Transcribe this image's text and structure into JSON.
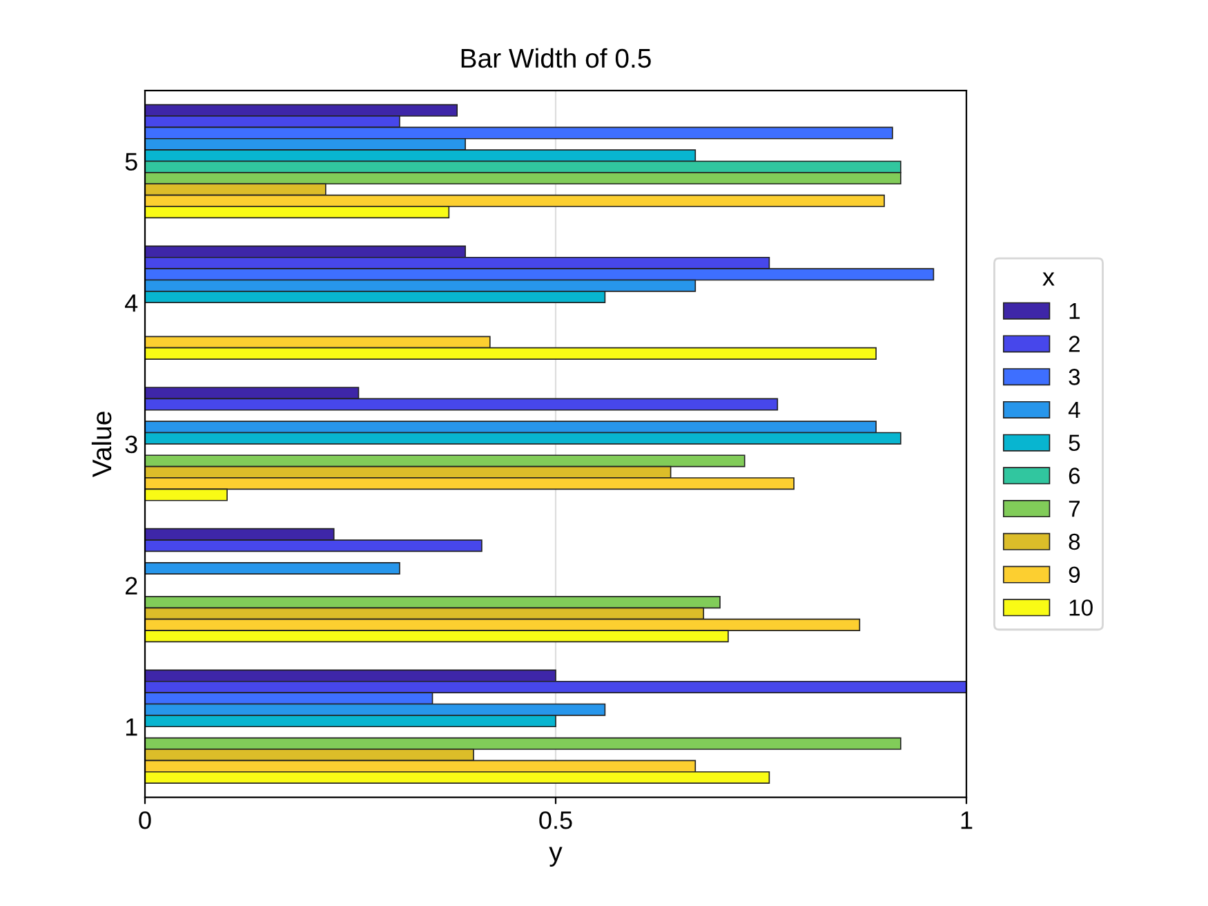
{
  "chart_data": {
    "type": "bar",
    "orientation": "horizontal",
    "title": "Bar Width of 0.5",
    "xlabel": "y",
    "ylabel": "Value",
    "legend_title": "x",
    "legend": "right",
    "grid": "x",
    "categories": [
      "5",
      "4",
      "3",
      "2",
      "1"
    ],
    "xlim": [
      0,
      1
    ],
    "xticks": [
      0,
      0.5,
      1
    ],
    "series": [
      {
        "name": "1",
        "color": "#3e26a8",
        "values": [
          0.38,
          0.39,
          0.26,
          0.23,
          0.5
        ]
      },
      {
        "name": "2",
        "color": "#4747eb",
        "values": [
          0.31,
          0.76,
          0.77,
          0.41,
          1.0
        ]
      },
      {
        "name": "3",
        "color": "#3e6fff",
        "values": [
          0.91,
          0.96,
          null,
          null,
          0.35
        ]
      },
      {
        "name": "4",
        "color": "#2796eb",
        "values": [
          0.39,
          0.67,
          0.89,
          0.31,
          0.56
        ]
      },
      {
        "name": "5",
        "color": "#08b5d0",
        "values": [
          0.67,
          0.56,
          0.92,
          null,
          0.5
        ]
      },
      {
        "name": "6",
        "color": "#31c69f",
        "values": [
          0.92,
          null,
          null,
          null,
          null
        ]
      },
      {
        "name": "7",
        "color": "#81cc59",
        "values": [
          0.92,
          null,
          0.73,
          0.7,
          0.92
        ]
      },
      {
        "name": "8",
        "color": "#dcbd29",
        "values": [
          0.22,
          null,
          0.64,
          0.68,
          0.4
        ]
      },
      {
        "name": "9",
        "color": "#fccf30",
        "values": [
          0.9,
          0.42,
          0.79,
          0.87,
          0.67
        ]
      },
      {
        "name": "10",
        "color": "#f9fb15",
        "values": [
          0.37,
          0.89,
          0.1,
          0.71,
          0.76
        ]
      }
    ]
  }
}
